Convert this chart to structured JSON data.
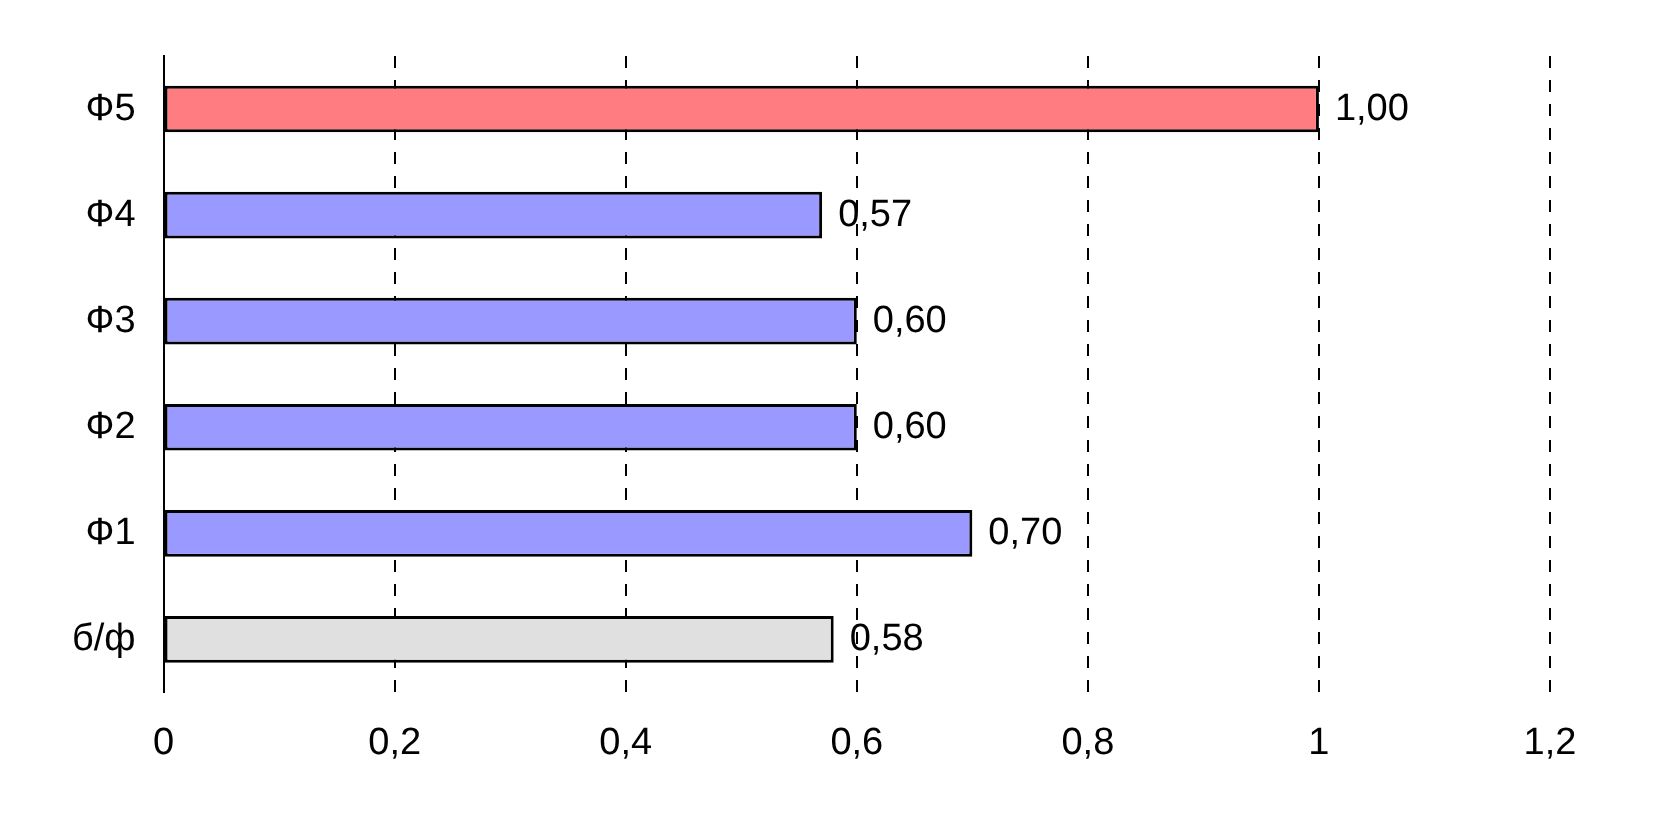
{
  "chart_data": {
    "type": "bar",
    "orientation": "horizontal",
    "categories": [
      "Ф5",
      "Ф4",
      "Ф3",
      "Ф2",
      "Ф1",
      "б/ф"
    ],
    "values": [
      1.0,
      0.57,
      0.6,
      0.6,
      0.7,
      0.58
    ],
    "colors": [
      "#ff7c80",
      "#9999ff",
      "#9999ff",
      "#9999ff",
      "#9999ff",
      "#e0e0e0"
    ],
    "value_labels": [
      "1,00",
      "0,57",
      "0,60",
      "0,60",
      "0,70",
      "0,58"
    ],
    "xlim": [
      0,
      1.2
    ],
    "xticks": [
      0,
      {
        "value": 0.2,
        "label": "0,2"
      },
      {
        "value": 0.4,
        "label": "0,4"
      },
      {
        "value": 0.6,
        "label": "0,6"
      },
      {
        "value": 0.8,
        "label": "0,8"
      },
      1,
      {
        "value": 1.2,
        "label": "1,2"
      }
    ],
    "grid": "x",
    "legend": false
  }
}
